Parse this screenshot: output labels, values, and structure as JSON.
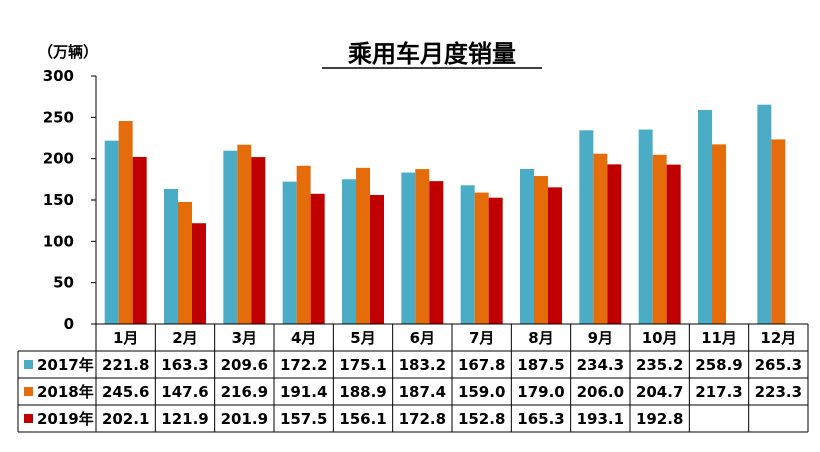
{
  "chart_data": {
    "type": "bar",
    "title": "乘用车月度销量",
    "unit": "（万辆）",
    "ylim": [
      0,
      300
    ],
    "yticks": [
      0,
      50,
      100,
      150,
      200,
      250,
      300
    ],
    "grid": false,
    "categories": [
      "1月",
      "2月",
      "3月",
      "4月",
      "5月",
      "6月",
      "7月",
      "8月",
      "9月",
      "10月",
      "11月",
      "12月"
    ],
    "series": [
      {
        "name": "2017年",
        "color": "#4bacc6",
        "values": [
          221.8,
          163.3,
          209.6,
          172.2,
          175.1,
          183.2,
          167.8,
          187.5,
          234.3,
          235.2,
          258.9,
          265.3
        ]
      },
      {
        "name": "2018年",
        "color": "#e46c0a",
        "values": [
          245.6,
          147.6,
          216.9,
          191.4,
          188.9,
          187.4,
          159.0,
          179.0,
          206.0,
          204.7,
          217.3,
          223.3
        ]
      },
      {
        "name": "2019年",
        "color": "#c00000",
        "values": [
          202.1,
          121.9,
          201.9,
          157.5,
          156.1,
          172.8,
          152.8,
          165.3,
          193.1,
          192.8,
          null,
          null
        ]
      }
    ],
    "data_table": true
  }
}
